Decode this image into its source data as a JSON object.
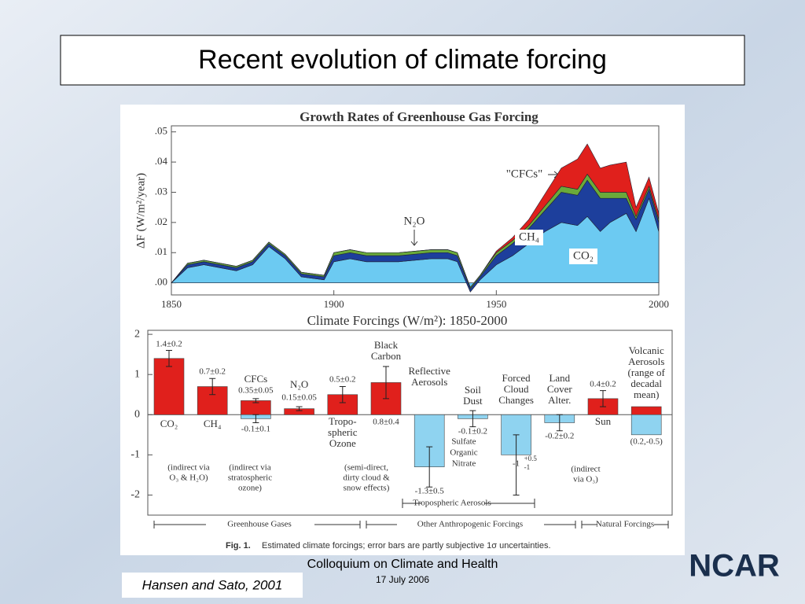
{
  "slide": {
    "title": "Recent evolution of climate forcing",
    "footer": "Colloquium on Climate and Health",
    "date": "17 July 2006",
    "citation": "Hansen and Sato, 2001",
    "logo": "NCAR"
  },
  "chart_data": [
    {
      "type": "area",
      "title": "Growth Rates of Greenhouse Gas Forcing",
      "y_label": "ΔF (W/m²/year)",
      "x": [
        1850,
        1855,
        1860,
        1870,
        1875,
        1880,
        1885,
        1890,
        1897,
        1900,
        1905,
        1910,
        1920,
        1930,
        1935,
        1938,
        1942,
        1945,
        1950,
        1955,
        1960,
        1965,
        1970,
        1975,
        1978,
        1982,
        1985,
        1990,
        1993,
        1997,
        2000
      ],
      "series": [
        {
          "name": "CO₂",
          "color": "#6ccaf2",
          "values": [
            0,
            0.005,
            0.006,
            0.004,
            0.006,
            0.012,
            0.008,
            0.002,
            0.001,
            0.007,
            0.008,
            0.007,
            0.007,
            0.008,
            0.008,
            0.007,
            -0.003,
            0.001,
            0.006,
            0.009,
            0.013,
            0.017,
            0.02,
            0.019,
            0.022,
            0.017,
            0.02,
            0.023,
            0.017,
            0.028,
            0.017
          ]
        },
        {
          "name": "CH₄",
          "color": "#1d3f9c",
          "values": [
            0,
            0.001,
            0.001,
            0.001,
            0.001,
            0.001,
            0.001,
            0.001,
            0.001,
            0.002,
            0.002,
            0.002,
            0.002,
            0.002,
            0.002,
            0.002,
            0.001,
            0.001,
            0.003,
            0.004,
            0.005,
            0.007,
            0.01,
            0.01,
            0.012,
            0.011,
            0.008,
            0.005,
            0.004,
            0.003,
            0.003
          ]
        },
        {
          "name": "N₂O",
          "color": "#6aaa3a",
          "values": [
            0,
            0.0005,
            0.0005,
            0.0005,
            0.0005,
            0.0005,
            0.0005,
            0.0005,
            0.0005,
            0.001,
            0.001,
            0.001,
            0.001,
            0.001,
            0.001,
            0.001,
            0.0005,
            0.0005,
            0.001,
            0.001,
            0.001,
            0.0015,
            0.002,
            0.002,
            0.002,
            0.002,
            0.002,
            0.002,
            0.001,
            0.001,
            0.001
          ]
        },
        {
          "name": "\"CFCs\"",
          "color": "#e0201c",
          "values": [
            0,
            0,
            0,
            0,
            0,
            0,
            0,
            0,
            0,
            0,
            0,
            0,
            0,
            0,
            0,
            0,
            0,
            0,
            0.0005,
            0.001,
            0.002,
            0.004,
            0.006,
            0.01,
            0.01,
            0.008,
            0.009,
            0.01,
            0.003,
            0.003,
            0.002
          ]
        }
      ],
      "xlim": [
        1850,
        2000
      ],
      "xticks": [
        1850,
        1900,
        1950,
        2000
      ],
      "ylim": [
        -0.004,
        0.052
      ],
      "yticks": [
        {
          "value": 0,
          "label": ".00"
        },
        {
          "value": 0.01,
          "label": ".01"
        },
        {
          "value": 0.02,
          "label": ".02"
        },
        {
          "value": 0.03,
          "label": ".03"
        },
        {
          "value": 0.04,
          "label": ".04"
        },
        {
          "value": 0.05,
          "label": ".05"
        }
      ]
    },
    {
      "type": "bar",
      "title": "Climate Forcings (W/m²): 1850-2000",
      "bars": [
        {
          "label": [
            "CO₂"
          ],
          "parts": [
            {
              "value": 1.4,
              "error": 0.2,
              "value_label": "1.4±0.2",
              "color": "#e0201c"
            }
          ]
        },
        {
          "label": [
            "CH₄"
          ],
          "parts": [
            {
              "value": 0.7,
              "error": 0.2,
              "value_label": "0.7±0.2",
              "color": "#e0201c"
            }
          ]
        },
        {
          "label": [
            "CFCs"
          ],
          "parts": [
            {
              "value": 0.35,
              "error": 0.05,
              "value_label": "0.35±0.05",
              "color": "#e0201c"
            },
            {
              "value": -0.1,
              "error": 0.1,
              "value_label": "-0.1±0.1",
              "color": "#8fd3f0"
            }
          ]
        },
        {
          "label": [
            "N₂O"
          ],
          "parts": [
            {
              "value": 0.15,
              "error": 0.05,
              "value_label": "0.15±0.05",
              "color": "#e0201c"
            }
          ]
        },
        {
          "label": [
            "Tropo-",
            "spheric",
            "Ozone"
          ],
          "parts": [
            {
              "value": 0.5,
              "error": 0.2,
              "value_label": "0.5±0.2",
              "color": "#e0201c"
            }
          ]
        },
        {
          "label": [
            "Black",
            "Carbon"
          ],
          "parts": [
            {
              "value": 0.8,
              "error": 0.4,
              "value_label": "0.8±0.4",
              "color": "#e0201c"
            }
          ]
        },
        {
          "label": [
            "Reflective",
            "Aerosols"
          ],
          "parts": [
            {
              "value": -1.3,
              "error": 0.5,
              "value_label": "-1.3±0.5",
              "color": "#8fd3f0"
            }
          ]
        },
        {
          "label": [
            "Soil",
            "Dust"
          ],
          "parts": [
            {
              "value": -0.1,
              "error": 0.2,
              "value_label": "-0.1±0.2",
              "color": "#8fd3f0"
            }
          ]
        },
        {
          "label": [
            "Forced",
            "Cloud",
            "Changes"
          ],
          "parts": [
            {
              "value": -1,
              "error_plus": 0.5,
              "error_minus": 1,
              "value_label": "-1",
              "error_labels": [
                "+0.5",
                "-1"
              ],
              "color": "#8fd3f0"
            }
          ]
        },
        {
          "label": [
            "Land",
            "Cover",
            "Alter."
          ],
          "parts": [
            {
              "value": -0.2,
              "error": 0.2,
              "value_label": "-0.2±0.2",
              "color": "#8fd3f0"
            }
          ]
        },
        {
          "label": [
            "Sun"
          ],
          "parts": [
            {
              "value": 0.4,
              "error": 0.2,
              "value_label": "0.4±0.2",
              "color": "#e0201c"
            }
          ]
        },
        {
          "label": [
            "Volcanic",
            "Aerosols",
            "(range of",
            "decadal",
            "mean)"
          ],
          "parts": [
            {
              "value": 0.2,
              "color": "#e0201c"
            },
            {
              "value": -0.5,
              "color": "#8fd3f0"
            }
          ],
          "value_label": "(0.2,-0.5)"
        }
      ],
      "ylim": [
        -2.5,
        2.1
      ],
      "yticks": [
        -2,
        -1,
        0,
        1,
        2
      ],
      "annotations": [
        [
          "(indirect via",
          "O₃  & H₂O)"
        ],
        [
          "(indirect via",
          "stratospheric",
          "ozone)"
        ],
        [
          "(semi-direct,",
          "dirty cloud &",
          "snow effects)"
        ],
        [
          "Sulfate"
        ],
        [
          "Organic"
        ],
        [
          "Nitrate"
        ],
        [
          "(indirect",
          "via O₃)"
        ],
        [
          "Tropospheric Aerosols"
        ],
        [
          "Greenhouse Gases"
        ],
        [
          "Other Anthropogenic Forcings"
        ],
        [
          "Natural Forcings"
        ]
      ],
      "caption": {
        "label": "Fig. 1.",
        "text": "Estimated climate forcings; error bars are partly subjective 1σ uncertainties."
      }
    }
  ]
}
